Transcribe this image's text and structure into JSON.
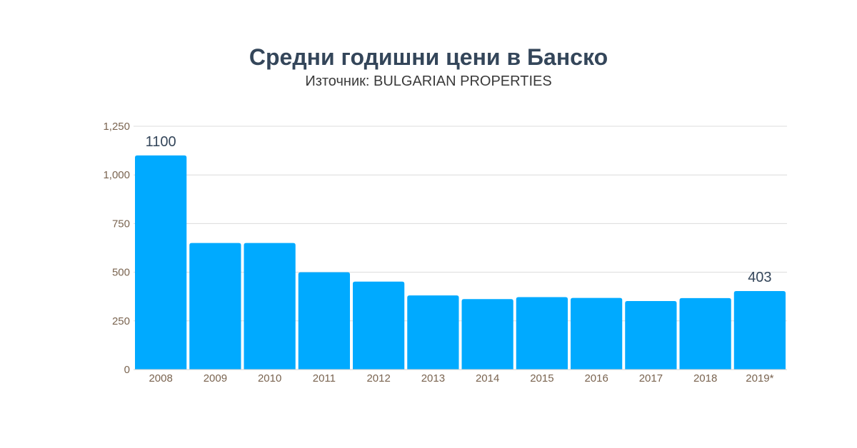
{
  "chart_data": {
    "type": "bar",
    "title": "Средни годишни цени в Банско",
    "subtitle": "Източник: BULGARIAN PROPERTIES",
    "categories": [
      "2008",
      "2009",
      "2010",
      "2011",
      "2012",
      "2013",
      "2014",
      "2015",
      "2016",
      "2017",
      "2018",
      "2019*"
    ],
    "values": [
      1100,
      650,
      650,
      500,
      452,
      381,
      362,
      372,
      368,
      352,
      367,
      403
    ],
    "data_labels": {
      "0": "1100",
      "11": "403"
    },
    "xlabel": "",
    "ylabel": "",
    "ylim": [
      0,
      1250
    ],
    "yticks": [
      0,
      250,
      500,
      750,
      1000,
      1250
    ],
    "ytick_labels": [
      "0",
      "250",
      "500",
      "750",
      "1,000",
      "1,250"
    ],
    "grid": true,
    "legend": "none",
    "bar_color": "#00aaff"
  }
}
